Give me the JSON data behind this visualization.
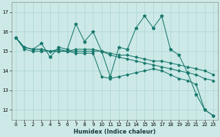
{
  "xlabel": "Humidex (Indice chaleur)",
  "ylabel": "",
  "xlim": [
    -0.5,
    23.5
  ],
  "ylim": [
    11.5,
    17.5
  ],
  "yticks": [
    12,
    13,
    14,
    15,
    16,
    17
  ],
  "xticks": [
    0,
    1,
    2,
    3,
    4,
    5,
    6,
    7,
    8,
    9,
    10,
    11,
    12,
    13,
    14,
    15,
    16,
    17,
    18,
    19,
    20,
    21,
    22,
    23
  ],
  "bg_color": "#cce9e7",
  "grid_color": "#aad4d0",
  "line_color": "#1a7a6e",
  "line1": [
    15.7,
    15.2,
    15.1,
    15.4,
    14.7,
    15.2,
    15.1,
    16.4,
    15.5,
    16.0,
    15.0,
    13.7,
    15.2,
    15.1,
    16.2,
    16.8,
    16.2,
    16.8,
    15.1,
    14.8,
    13.9,
    12.8,
    12.0,
    11.7
  ],
  "line2": [
    15.7,
    15.2,
    15.1,
    15.1,
    15.0,
    15.1,
    15.0,
    15.1,
    15.1,
    15.1,
    15.0,
    14.9,
    14.8,
    14.8,
    14.7,
    14.6,
    14.5,
    14.5,
    14.4,
    14.3,
    14.2,
    14.1,
    14.0,
    13.8
  ],
  "line3": [
    15.7,
    15.1,
    15.0,
    15.0,
    15.0,
    15.0,
    15.0,
    15.0,
    15.0,
    15.0,
    15.0,
    14.8,
    14.7,
    14.6,
    14.5,
    14.4,
    14.3,
    14.2,
    14.1,
    14.0,
    13.9,
    13.8,
    13.6,
    13.5
  ],
  "line4": [
    15.7,
    15.2,
    15.1,
    15.1,
    15.0,
    15.0,
    15.0,
    14.9,
    14.9,
    14.9,
    13.7,
    13.6,
    13.7,
    13.8,
    13.9,
    14.0,
    14.1,
    14.0,
    13.8,
    13.6,
    13.5,
    13.3,
    12.0,
    11.7
  ]
}
